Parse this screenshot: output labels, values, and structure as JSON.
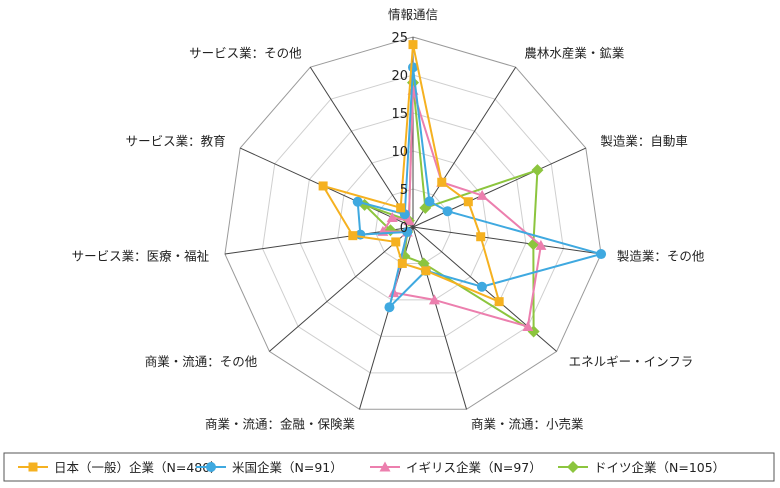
{
  "chart_data": {
    "type": "radar",
    "categories": [
      "情報通信",
      "農林水産業・鉱業",
      "製造業：自動車",
      "製造業：その他",
      "エネルギー・インフラ",
      "商業・流通：小売業",
      "商業・流通：金融・保険業",
      "商業・流通：その他",
      "サービス業：医療・福祉",
      "サービス業：教育",
      "サービス業：その他"
    ],
    "r_ticks": [
      "0",
      "5",
      "10",
      "15",
      "20",
      "25"
    ],
    "rlim": [
      0,
      25
    ],
    "grid": true,
    "legend_position": "bottom",
    "series": [
      {
        "name": "日本（一般）企業（N=480）",
        "color": "#F5B120",
        "marker": "square",
        "values": [
          24,
          7,
          8,
          9,
          15,
          6,
          5,
          3,
          8,
          13,
          3
        ]
      },
      {
        "name": "米国企業（N=91）",
        "color": "#3FA9E0",
        "marker": "circle",
        "values": [
          21,
          4,
          5,
          25,
          12,
          6,
          11,
          1,
          7,
          8,
          2
        ]
      },
      {
        "name": "イギリス企業（N=97）",
        "color": "#EC7FAE",
        "marker": "triangle",
        "values": [
          18,
          7,
          10,
          17,
          20,
          10,
          9,
          1,
          4,
          3,
          1
        ]
      },
      {
        "name": "ドイツ企業（N=105）",
        "color": "#8CC53E",
        "marker": "diamond",
        "values": [
          19,
          3,
          18,
          16,
          21,
          5,
          4,
          1,
          3,
          7,
          1
        ]
      }
    ]
  }
}
